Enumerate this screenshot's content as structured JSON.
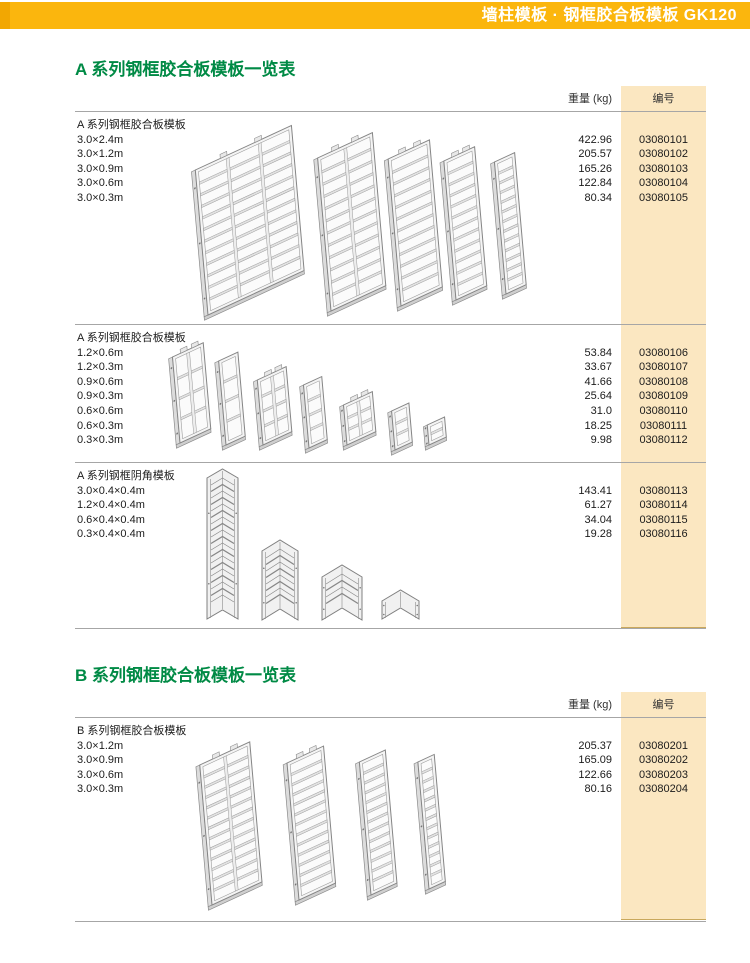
{
  "topbar": {
    "title": "墙柱模板 · 钢框胶合板模板 GK120"
  },
  "colors": {
    "banner_yellow": "#FBB60D",
    "banner_accent": "#F2A702",
    "title_green": "#008A45",
    "code_column_bg": "#FBE7C1",
    "rule_gray": "#A6A6A6"
  },
  "tables": [
    {
      "id": "A",
      "title": "A 系列钢框胶合板模板一览表",
      "columns": {
        "weight": "重量 (kg)",
        "code": "编号"
      },
      "sections": [
        {
          "header": "A 系列钢框胶合板模板",
          "rows": [
            {
              "size": "3.0×2.4m",
              "weight": "422.96",
              "code": "03080101"
            },
            {
              "size": "3.0×1.2m",
              "weight": "205.57",
              "code": "03080102"
            },
            {
              "size": "3.0×0.9m",
              "weight": "165.26",
              "code": "03080103"
            },
            {
              "size": "3.0×0.6m",
              "weight": "122.84",
              "code": "03080104"
            },
            {
              "size": "3.0×0.3m",
              "weight": "80.34",
              "code": "03080105"
            }
          ]
        },
        {
          "header": "A 系列钢框胶合板模板",
          "rows": [
            {
              "size": "1.2×0.6m",
              "weight": "53.84",
              "code": "03080106"
            },
            {
              "size": "1.2×0.3m",
              "weight": "33.67",
              "code": "03080107"
            },
            {
              "size": "0.9×0.6m",
              "weight": "41.66",
              "code": "03080108"
            },
            {
              "size": "0.9×0.3m",
              "weight": "25.64",
              "code": "03080109"
            },
            {
              "size": "0.6×0.6m",
              "weight": "31.0",
              "code": "03080110"
            },
            {
              "size": "0.6×0.3m",
              "weight": "18.25",
              "code": "03080111"
            },
            {
              "size": "0.3×0.3m",
              "weight": "9.98",
              "code": "03080112"
            }
          ]
        },
        {
          "header": "A 系列钢框阴角模板",
          "rows": [
            {
              "size": "3.0×0.4×0.4m",
              "weight": "143.41",
              "code": "03080113"
            },
            {
              "size": "1.2×0.4×0.4m",
              "weight": "61.27",
              "code": "03080114"
            },
            {
              "size": "0.6×0.4×0.4m",
              "weight": "34.04",
              "code": "03080115"
            },
            {
              "size": "0.3×0.4×0.4m",
              "weight": "19.28",
              "code": "03080116"
            }
          ]
        }
      ]
    },
    {
      "id": "B",
      "title": "B 系列钢框胶合板模板一览表",
      "columns": {
        "weight": "重量 (kg)",
        "code": "编号"
      },
      "sections": [
        {
          "header": "B 系列钢框胶合板模板",
          "rows": [
            {
              "size": "3.0×1.2m",
              "weight": "205.37",
              "code": "03080201"
            },
            {
              "size": "3.0×0.9m",
              "weight": "165.09",
              "code": "03080202"
            },
            {
              "size": "3.0×0.6m",
              "weight": "122.66",
              "code": "03080203"
            },
            {
              "size": "3.0×0.3m",
              "weight": "80.16",
              "code": "03080204"
            }
          ]
        }
      ]
    }
  ]
}
